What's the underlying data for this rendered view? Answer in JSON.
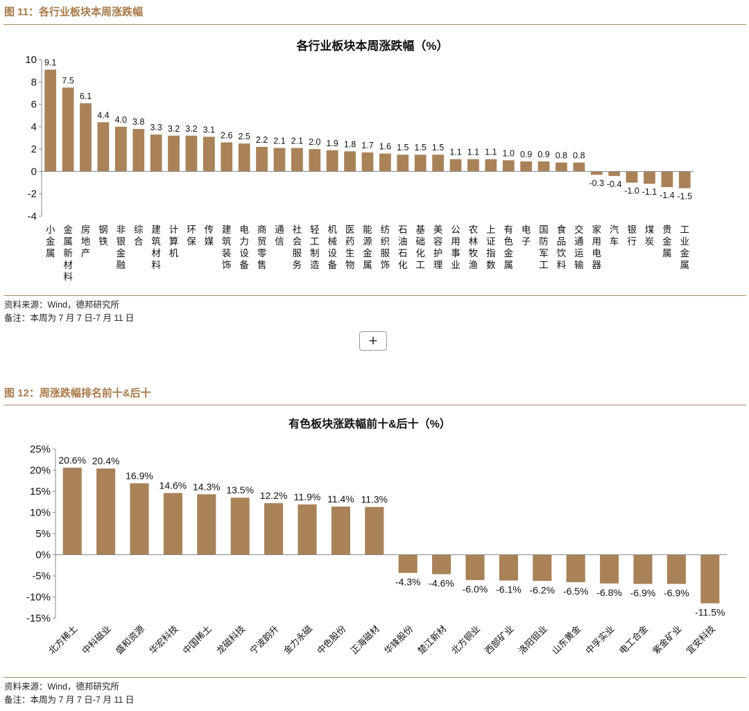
{
  "figure1": {
    "header": "图 11：各行业板块本周涨跌幅",
    "source": "资料来源：Wind，德邦研究所",
    "remark": "备注：本周为 7 月 7 日-7 月 11 日"
  },
  "figure2": {
    "header": "图 12：周涨跌幅排名前十&后十",
    "source": "资料来源：Wind，德邦研究所",
    "remark": "备注：本周为 7 月 7 日-7 月 11 日"
  },
  "expand_button": {
    "icon": "plus-icon",
    "label": "+"
  },
  "colors": {
    "bar": "#a98258",
    "rule": "#b08a5e",
    "header": "#a87a4a"
  },
  "chart_data": [
    {
      "type": "bar",
      "title": "各行业板块本周涨跌幅（%）",
      "xlabel": "",
      "ylabel": "",
      "ylim": [
        -4,
        10
      ],
      "yticks": [
        "10",
        "8",
        "6",
        "4",
        "2",
        "0",
        "-2",
        "-4"
      ],
      "ytick_values": [
        10,
        8,
        6,
        4,
        2,
        0,
        -2,
        -4
      ],
      "grid": false,
      "categories": [
        "小金属",
        "金属新材料",
        "房地产",
        "钢铁",
        "非银金融",
        "综合",
        "建筑材料",
        "计算机",
        "环保",
        "传媒",
        "建筑装饰",
        "电力设备",
        "商贸零售",
        "通信",
        "社会服务",
        "轻工制造",
        "机械设备",
        "医药生物",
        "能源金属",
        "纺织服饰",
        "石油石化",
        "基础化工",
        "美容护理",
        "公用事业",
        "农林牧渔",
        "上证指数",
        "有色金属",
        "电子",
        "国防军工",
        "食品饮料",
        "交通运输",
        "家用电器",
        "汽车",
        "银行",
        "煤炭",
        "贵金属",
        "工业金属"
      ],
      "values": [
        9.1,
        7.5,
        6.1,
        4.4,
        4.0,
        3.8,
        3.3,
        3.2,
        3.2,
        3.1,
        2.6,
        2.5,
        2.2,
        2.1,
        2.1,
        2.0,
        1.9,
        1.8,
        1.7,
        1.6,
        1.5,
        1.5,
        1.5,
        1.1,
        1.1,
        1.1,
        1.0,
        0.9,
        0.9,
        0.8,
        0.8,
        -0.3,
        -0.4,
        -1.0,
        -1.1,
        -1.4,
        -1.5
      ],
      "labels": [
        "9.1",
        "7.5",
        "6.1",
        "4.4",
        "4.0",
        "3.8",
        "3.3",
        "3.2",
        "3.2",
        "3.1",
        "2.6",
        "2.5",
        "2.2",
        "2.1",
        "2.1",
        "2.0",
        "1.9",
        "1.8",
        "1.7",
        "1.6",
        "1.5",
        "1.5",
        "1.5",
        "1.1",
        "1.1",
        "1.1",
        "1.0",
        "0.9",
        "0.9",
        "0.8",
        "0.8",
        "-0.3",
        "-0.4",
        "-1.0",
        "-1.1",
        "-1.4",
        "-1.5"
      ]
    },
    {
      "type": "bar",
      "title": "有色板块涨跌幅前十&后十（%）",
      "xlabel": "",
      "ylabel": "",
      "ylim": [
        -15,
        25
      ],
      "yticks": [
        "25%",
        "20%",
        "15%",
        "10%",
        "5%",
        "0%",
        "-5%",
        "-10%",
        "-15%"
      ],
      "ytick_values": [
        25,
        20,
        15,
        10,
        5,
        0,
        -5,
        -10,
        -15
      ],
      "grid": false,
      "categories": [
        "北方稀土",
        "中科磁业",
        "盛和资源",
        "华宏科技",
        "中国稀土",
        "龙磁科技",
        "宁波韵升",
        "金力永磁",
        "中色股份",
        "正海磁材",
        "华锋股份",
        "楚江新材",
        "北方铜业",
        "西部矿业",
        "洛阳钼业",
        "山东黄金",
        "中孚实业",
        "电工合金",
        "紫金矿业",
        "宜安科技"
      ],
      "values": [
        20.6,
        20.4,
        16.9,
        14.6,
        14.3,
        13.5,
        12.2,
        11.9,
        11.4,
        11.3,
        -4.3,
        -4.6,
        -6.0,
        -6.1,
        -6.2,
        -6.5,
        -6.8,
        -6.9,
        -6.9,
        -11.5
      ],
      "labels": [
        "20.6%",
        "20.4%",
        "16.9%",
        "14.6%",
        "14.3%",
        "13.5%",
        "12.2%",
        "11.9%",
        "11.4%",
        "11.3%",
        "-4.3%",
        "-4.6%",
        "-6.0%",
        "-6.1%",
        "-6.2%",
        "-6.5%",
        "-6.8%",
        "-6.9%",
        "-6.9%",
        "-11.5%"
      ]
    }
  ]
}
